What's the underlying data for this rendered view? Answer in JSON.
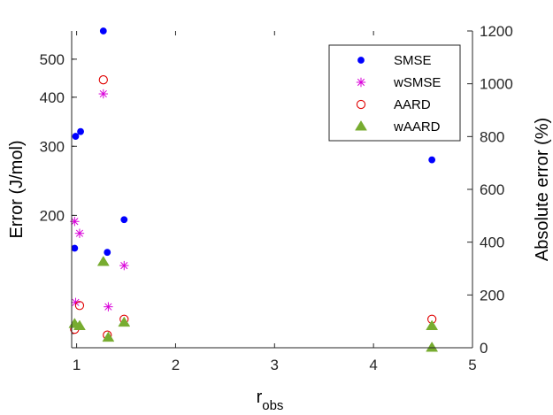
{
  "chart_data": {
    "type": "scatter",
    "x_axis": {
      "label": "r",
      "label_subscript": "obs",
      "range": [
        0.95,
        5
      ],
      "ticks": [
        1,
        2,
        3,
        4,
        5
      ],
      "tick_labels": [
        "1",
        "2",
        "3",
        "4",
        "5"
      ]
    },
    "y_axis_left": {
      "label": "Error (J/mol)",
      "scale": "log",
      "range": [
        92,
        590
      ],
      "ticks": [
        200,
        300,
        400,
        500
      ],
      "tick_labels": [
        "200",
        "300",
        "400",
        "500"
      ]
    },
    "y_axis_right": {
      "label": "Absolute error (%)",
      "scale": "linear",
      "range": [
        0,
        1200
      ],
      "ticks": [
        0,
        200,
        400,
        600,
        800,
        1000,
        1200
      ],
      "tick_labels": [
        "0",
        "200",
        "400",
        "600",
        "800",
        "1000",
        "1200"
      ]
    },
    "grid": false,
    "legend_position": "top-right",
    "series": [
      {
        "name": "SMSE",
        "axis": "left",
        "marker": "filled-circle",
        "color": "#0000ff",
        "points": [
          {
            "x": 0.98,
            "y": 165
          },
          {
            "x": 0.99,
            "y": 318
          },
          {
            "x": 1.04,
            "y": 327
          },
          {
            "x": 1.27,
            "y": 590
          },
          {
            "x": 1.31,
            "y": 161
          },
          {
            "x": 1.48,
            "y": 195
          },
          {
            "x": 4.59,
            "y": 277
          }
        ]
      },
      {
        "name": "wSMSE",
        "axis": "left",
        "marker": "asterisk",
        "color": "#d900d9",
        "points": [
          {
            "x": 0.98,
            "y": 193
          },
          {
            "x": 1.03,
            "y": 180
          },
          {
            "x": 1.27,
            "y": 408
          },
          {
            "x": 0.99,
            "y": 120
          },
          {
            "x": 1.32,
            "y": 117
          },
          {
            "x": 1.48,
            "y": 149
          }
        ]
      },
      {
        "name": "AARD",
        "axis": "right",
        "marker": "open-circle",
        "color": "#e00000",
        "points": [
          {
            "x": 0.98,
            "y": 70
          },
          {
            "x": 1.03,
            "y": 160
          },
          {
            "x": 1.27,
            "y": 1015
          },
          {
            "x": 1.31,
            "y": 48
          },
          {
            "x": 1.48,
            "y": 108
          },
          {
            "x": 4.59,
            "y": 108
          }
        ]
      },
      {
        "name": "wAARD",
        "axis": "right",
        "marker": "filled-triangle",
        "color": "#77ac30",
        "points": [
          {
            "x": 0.98,
            "y": 90
          },
          {
            "x": 1.03,
            "y": 82
          },
          {
            "x": 1.27,
            "y": 325
          },
          {
            "x": 1.32,
            "y": 38
          },
          {
            "x": 1.48,
            "y": 95
          },
          {
            "x": 4.59,
            "y": 82
          },
          {
            "x": 4.59,
            "y": 0
          }
        ]
      }
    ]
  }
}
